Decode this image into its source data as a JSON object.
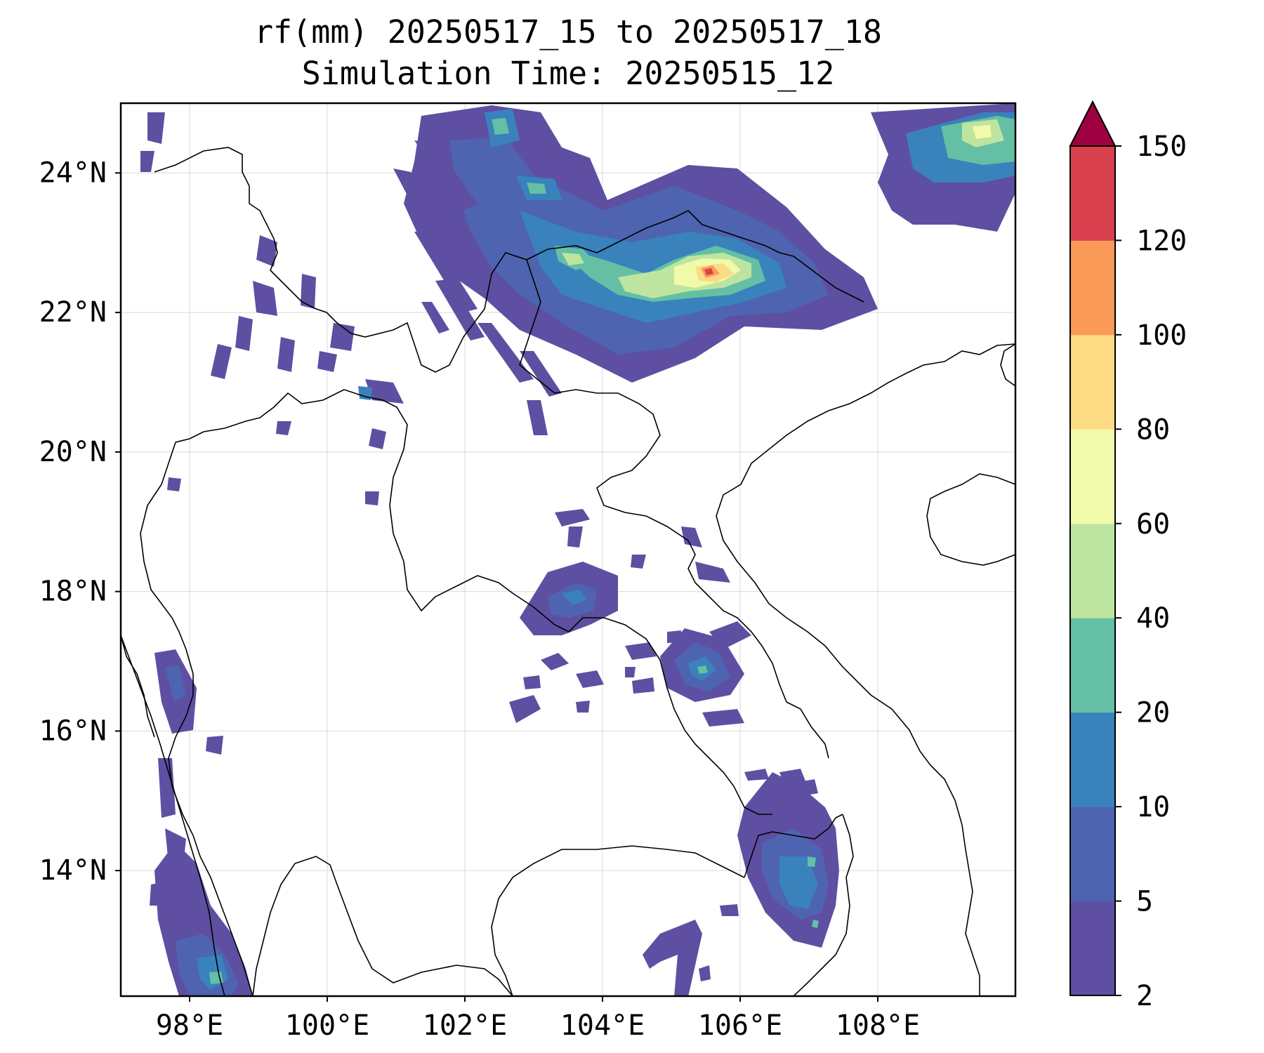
{
  "title": {
    "line1": "rf(mm) 20250517_15 to 20250517_18",
    "line2": "Simulation Time: 20250515_12"
  },
  "axes": {
    "lon_range": [
      97.0,
      110.0
    ],
    "lat_range": [
      12.2,
      25.0
    ],
    "x_ticks": [
      {
        "value": 98,
        "label": "98°E"
      },
      {
        "value": 100,
        "label": "100°E"
      },
      {
        "value": 102,
        "label": "102°E"
      },
      {
        "value": 104,
        "label": "104°E"
      },
      {
        "value": 106,
        "label": "106°E"
      },
      {
        "value": 108,
        "label": "108°E"
      }
    ],
    "y_ticks": [
      {
        "value": 14,
        "label": "14°N"
      },
      {
        "value": 16,
        "label": "16°N"
      },
      {
        "value": 18,
        "label": "18°N"
      },
      {
        "value": 20,
        "label": "20°N"
      },
      {
        "value": 22,
        "label": "22°N"
      },
      {
        "value": 24,
        "label": "24°N"
      }
    ],
    "grid": true
  },
  "colorbar": {
    "levels": [
      "2",
      "5",
      "10",
      "20",
      "40",
      "60",
      "80",
      "100",
      "120",
      "150"
    ],
    "colors": [
      "#5e4fa2",
      "#4e64b0",
      "#3a82bb",
      "#64bfa5",
      "#bde5a0",
      "#f1f9ab",
      "#fddb84",
      "#f99a59",
      "#d8404e"
    ],
    "extend_color": "#9e0142",
    "extend": "max"
  },
  "chart_data": {
    "type": "filled_contour_map",
    "variable": "rf(mm)",
    "units": "mm",
    "period": "20250517_15 to 20250517_18",
    "levels": [
      2,
      5,
      10,
      20,
      40,
      60,
      80,
      100,
      120,
      150
    ],
    "rain_areas": [
      {
        "lon": 105.6,
        "lat": 22.4,
        "max_level": 120
      },
      {
        "lon": 104.2,
        "lat": 22.4,
        "max_level": 60
      },
      {
        "lon": 109.5,
        "lat": 24.5,
        "max_level": 60
      },
      {
        "lon": 102.4,
        "lat": 24.6,
        "max_level": 40
      },
      {
        "lon": 103.1,
        "lat": 23.8,
        "max_level": 40
      },
      {
        "lon": 105.2,
        "lat": 16.8,
        "max_level": 20
      },
      {
        "lon": 103.9,
        "lat": 17.6,
        "max_level": 20
      },
      {
        "lon": 106.9,
        "lat": 13.6,
        "max_level": 20
      },
      {
        "lon": 98.2,
        "lat": 12.6,
        "max_level": 40
      }
    ]
  },
  "map_features": {
    "coastlines": true,
    "borders": true
  }
}
